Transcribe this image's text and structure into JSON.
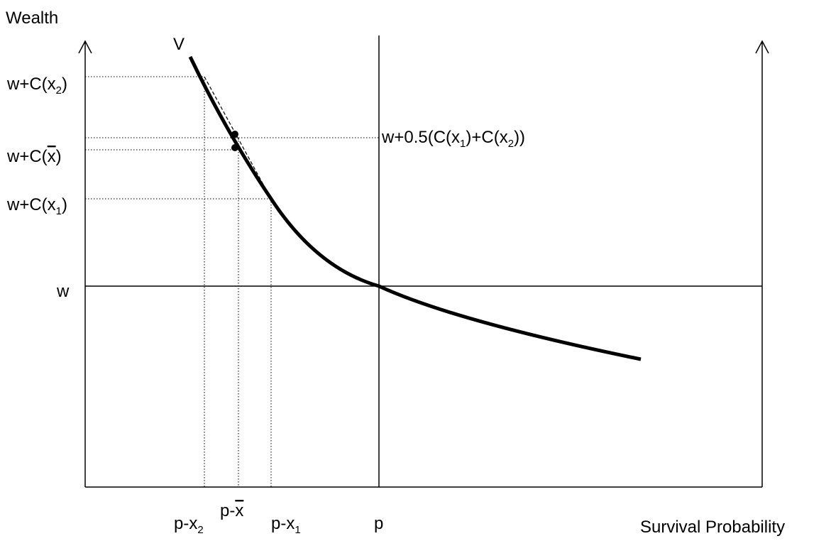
{
  "axes": {
    "y_title": "Wealth",
    "x_title": "Survival Probability"
  },
  "curve": {
    "name": "V"
  },
  "y_labels": {
    "top": {
      "base": "w+C(x",
      "sub": "2",
      "close": ")"
    },
    "mid_bar": {
      "base": "w+C(",
      "var": "x",
      "close": ")"
    },
    "low": {
      "base": "w+C(x",
      "sub": "1",
      "close": ")"
    },
    "w": "w"
  },
  "average_label": {
    "part1": "w+0.5(C(x",
    "sub1": "1",
    "part2": ")+C(x",
    "sub2": "2",
    "part3": "))"
  },
  "x_labels": {
    "p_x2": {
      "base": "p-x",
      "sub": "2"
    },
    "p_xbar": {
      "base": "p-",
      "var": "x"
    },
    "p_x1": {
      "base": "p-x",
      "sub": "1"
    },
    "p": "p"
  },
  "colors": {
    "ink": "#000000",
    "background": "#ffffff"
  }
}
